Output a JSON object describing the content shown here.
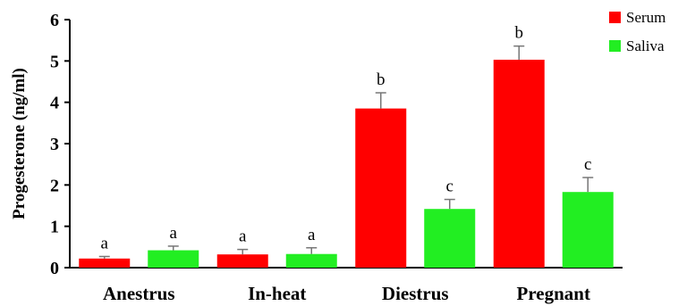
{
  "chart_data": {
    "type": "bar",
    "title": "",
    "xlabel": "",
    "ylabel": "Progesterone (ng/ml)",
    "ylim": [
      0,
      6
    ],
    "yticks": [
      "0",
      "1",
      "2",
      "3",
      "4",
      "5",
      "6"
    ],
    "categories": [
      "Anestrus",
      "In-heat",
      "Diestrus",
      "Pregnant"
    ],
    "series": [
      {
        "name": "Serum",
        "color": "#ff0000",
        "values": [
          0.22,
          0.32,
          3.85,
          5.03
        ],
        "errors": [
          0.05,
          0.12,
          0.38,
          0.33
        ],
        "labels": [
          "a",
          "a",
          "b",
          "b"
        ]
      },
      {
        "name": "Saliva",
        "color": "#22ee22",
        "values": [
          0.42,
          0.33,
          1.42,
          1.83
        ],
        "errors": [
          0.1,
          0.15,
          0.23,
          0.35
        ],
        "labels": [
          "a",
          "a",
          "c",
          "c"
        ]
      }
    ],
    "legend": {
      "position": "top-right"
    },
    "grid": false
  }
}
